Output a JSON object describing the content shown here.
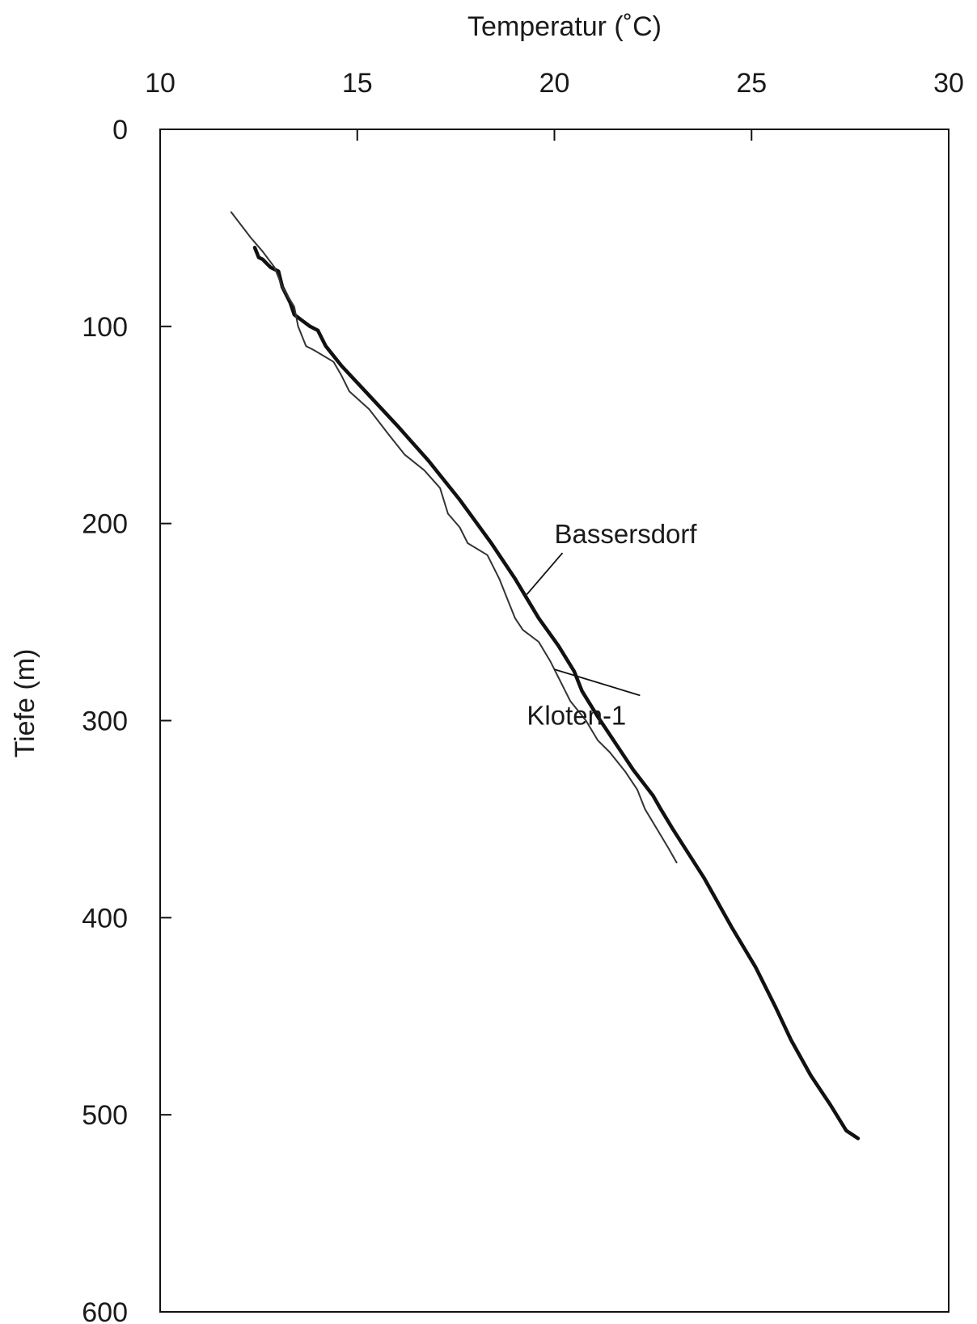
{
  "chart_data": {
    "type": "line",
    "title": "",
    "xlabel": "Temperatur (˚C)",
    "ylabel": "Tiefe (m)",
    "xlim": [
      10,
      30
    ],
    "ylim": [
      600,
      0
    ],
    "x_axis_position": "top",
    "y_inverted": true,
    "grid": false,
    "legend": "none",
    "x_ticks": [
      10,
      15,
      20,
      25,
      30
    ],
    "y_ticks": [
      0,
      100,
      200,
      300,
      400,
      500,
      600
    ],
    "series": [
      {
        "name": "Bassersdorf",
        "color": "#111111",
        "points": [
          [
            12.4,
            60
          ],
          [
            12.5,
            65
          ],
          [
            12.6,
            66
          ],
          [
            12.7,
            68
          ],
          [
            12.8,
            70
          ],
          [
            13.0,
            72
          ],
          [
            13.1,
            80
          ],
          [
            13.3,
            88
          ],
          [
            13.4,
            94
          ],
          [
            13.6,
            97
          ],
          [
            13.8,
            100
          ],
          [
            14.0,
            102
          ],
          [
            14.2,
            110
          ],
          [
            14.6,
            120
          ],
          [
            15.3,
            135
          ],
          [
            16.0,
            150
          ],
          [
            16.8,
            168
          ],
          [
            17.6,
            188
          ],
          [
            18.4,
            210
          ],
          [
            19.0,
            228
          ],
          [
            19.3,
            238
          ],
          [
            19.6,
            248
          ],
          [
            20.1,
            262
          ],
          [
            20.5,
            275
          ],
          [
            20.7,
            285
          ],
          [
            21.1,
            298
          ],
          [
            21.5,
            310
          ],
          [
            22.0,
            325
          ],
          [
            22.5,
            338
          ],
          [
            22.7,
            345
          ],
          [
            23.0,
            355
          ],
          [
            23.8,
            380
          ],
          [
            24.5,
            405
          ],
          [
            25.1,
            425
          ],
          [
            25.6,
            445
          ],
          [
            26.0,
            462
          ],
          [
            26.5,
            480
          ],
          [
            27.0,
            495
          ],
          [
            27.4,
            508
          ],
          [
            27.7,
            512
          ]
        ]
      },
      {
        "name": "Kloten-1",
        "color": "#333333",
        "points": [
          [
            11.8,
            42
          ],
          [
            12.3,
            55
          ],
          [
            12.6,
            62
          ],
          [
            12.9,
            70
          ],
          [
            13.1,
            80
          ],
          [
            13.4,
            90
          ],
          [
            13.5,
            100
          ],
          [
            13.7,
            110
          ],
          [
            13.9,
            112
          ],
          [
            14.4,
            118
          ],
          [
            14.6,
            125
          ],
          [
            14.8,
            133
          ],
          [
            15.3,
            142
          ],
          [
            15.8,
            155
          ],
          [
            16.2,
            165
          ],
          [
            16.7,
            173
          ],
          [
            17.1,
            182
          ],
          [
            17.3,
            195
          ],
          [
            17.6,
            202
          ],
          [
            17.8,
            210
          ],
          [
            18.3,
            216
          ],
          [
            18.6,
            228
          ],
          [
            18.8,
            238
          ],
          [
            19.0,
            248
          ],
          [
            19.2,
            254
          ],
          [
            19.6,
            260
          ],
          [
            19.9,
            270
          ],
          [
            20.1,
            278
          ],
          [
            20.4,
            290
          ],
          [
            20.8,
            300
          ],
          [
            21.1,
            310
          ],
          [
            21.4,
            316
          ],
          [
            21.8,
            326
          ],
          [
            22.1,
            335
          ],
          [
            22.3,
            345
          ],
          [
            22.6,
            355
          ],
          [
            22.9,
            365
          ],
          [
            23.1,
            372
          ]
        ]
      }
    ],
    "annotations": [
      {
        "text": "Bassersdorf",
        "label_at": [
          20.0,
          210
        ],
        "points_to": [
          19.3,
          236
        ]
      },
      {
        "text": "Kloten-1",
        "label_at": [
          19.3,
          302
        ],
        "points_to": [
          20.0,
          274
        ]
      }
    ]
  }
}
